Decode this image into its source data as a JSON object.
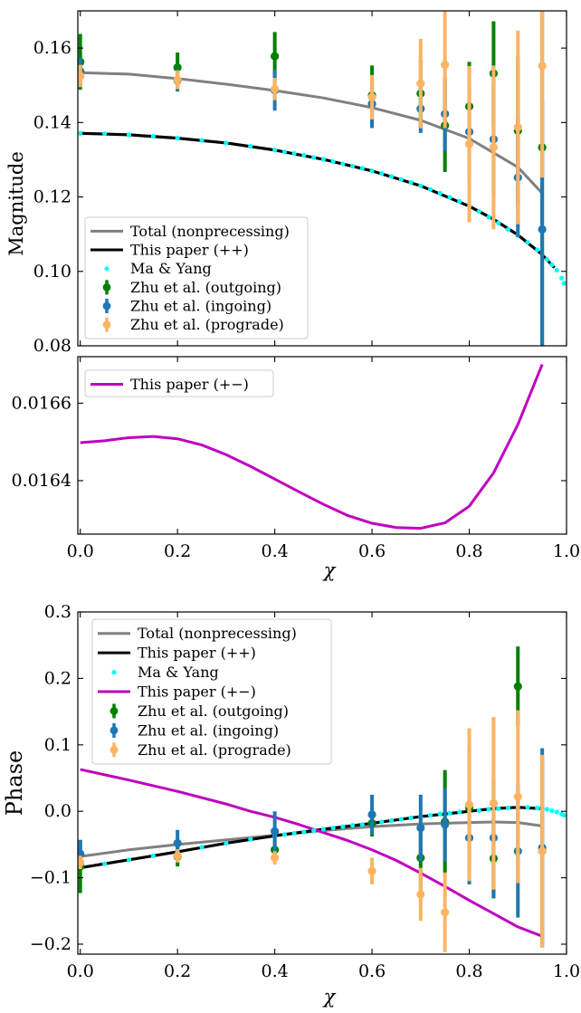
{
  "colors": {
    "total": "#808080",
    "this_pp": "#000000",
    "ma_yang": "#00ffff",
    "this_pm": "#bf00bf",
    "zhu_out": "#008000",
    "zhu_in": "#1f77b4",
    "zhu_pro": "#fdb462"
  },
  "chart_data": [
    {
      "type": "line",
      "title": "",
      "xlabel": "",
      "ylabel": "Magnitude",
      "xlim": [
        -0.005,
        1.0
      ],
      "ylim": [
        0.08,
        0.17
      ],
      "xticks": [
        0.0,
        0.2,
        0.4,
        0.6,
        0.8,
        1.0
      ],
      "xtick_labels": [
        "",
        "",
        "",
        "",
        "",
        ""
      ],
      "yticks": [
        0.08,
        0.1,
        0.12,
        0.14,
        0.16
      ],
      "ytick_labels": [
        "0.08",
        "0.10",
        "0.12",
        "0.14",
        "0.16"
      ],
      "legend_position": "lower-left",
      "legend": [
        {
          "label": "Total (nonprecessing)",
          "style": "line",
          "color_key": "total"
        },
        {
          "label": "This paper (++)",
          "style": "line",
          "color_key": "this_pp"
        },
        {
          "label": "Ma & Yang",
          "style": "dot",
          "color_key": "ma_yang"
        },
        {
          "label": "Zhu et al. (outgoing)",
          "style": "errorbar",
          "color_key": "zhu_out"
        },
        {
          "label": "Zhu et al. (ingoing)",
          "style": "errorbar",
          "color_key": "zhu_in"
        },
        {
          "label": "Zhu et al. (prograde)",
          "style": "errorbar",
          "color_key": "zhu_pro"
        }
      ],
      "series": [
        {
          "name": "Total (nonprecessing)",
          "kind": "line",
          "color_key": "total",
          "x": [
            0.0,
            0.1,
            0.2,
            0.3,
            0.4,
            0.5,
            0.6,
            0.7,
            0.8,
            0.9,
            0.95
          ],
          "y": [
            0.1534,
            0.153,
            0.1518,
            0.1503,
            0.1486,
            0.1466,
            0.144,
            0.1406,
            0.1357,
            0.128,
            0.121
          ]
        },
        {
          "name": "This paper (++)",
          "kind": "line",
          "color_key": "this_pp",
          "x": [
            0.0,
            0.1,
            0.2,
            0.3,
            0.4,
            0.5,
            0.6,
            0.7,
            0.8,
            0.85,
            0.9,
            0.95,
            0.975
          ],
          "y": [
            0.1371,
            0.1367,
            0.1358,
            0.1345,
            0.1326,
            0.1301,
            0.127,
            0.123,
            0.1175,
            0.114,
            0.1098,
            0.1045,
            0.101
          ]
        },
        {
          "name": "Ma & Yang",
          "kind": "scatter",
          "color_key": "ma_yang",
          "x": [
            0.0,
            0.05,
            0.1,
            0.15,
            0.2,
            0.25,
            0.3,
            0.35,
            0.4,
            0.42,
            0.44,
            0.46,
            0.48,
            0.5,
            0.52,
            0.54,
            0.56,
            0.58,
            0.6,
            0.62,
            0.64,
            0.66,
            0.68,
            0.7,
            0.72,
            0.74,
            0.76,
            0.78,
            0.8,
            0.82,
            0.84,
            0.86,
            0.88,
            0.9,
            0.92,
            0.94,
            0.95,
            0.96,
            0.97,
            0.98,
            0.99,
            0.995
          ],
          "y": [
            0.1371,
            0.137,
            0.1367,
            0.1363,
            0.1358,
            0.1352,
            0.1345,
            0.1336,
            0.1326,
            0.1321,
            0.1317,
            0.1312,
            0.1306,
            0.1301,
            0.1295,
            0.1289,
            0.1283,
            0.1277,
            0.127,
            0.1263,
            0.1255,
            0.1247,
            0.1239,
            0.123,
            0.122,
            0.121,
            0.1199,
            0.1188,
            0.1175,
            0.1161,
            0.1146,
            0.113,
            0.1113,
            0.1098,
            0.1078,
            0.1058,
            0.1045,
            0.1032,
            0.1018,
            0.1003,
            0.0982,
            0.0968
          ]
        },
        {
          "name": "Zhu et al. (outgoing)",
          "kind": "errorbar",
          "color_key": "zhu_out",
          "x": [
            0.0,
            0.2,
            0.4,
            0.6,
            0.7,
            0.75,
            0.8,
            0.85,
            0.9,
            0.95
          ],
          "y": [
            0.1563,
            0.1548,
            0.1578,
            0.1473,
            0.1478,
            0.1392,
            0.1443,
            0.1532,
            0.1378,
            0.1333
          ],
          "err": [
            0.0075,
            0.004,
            0.0065,
            0.008,
            0.009,
            0.0125,
            0.012,
            0.014,
            0.02,
            0.054
          ]
        },
        {
          "name": "Zhu et al. (ingoing)",
          "kind": "errorbar",
          "color_key": "zhu_in",
          "x": [
            0.0,
            0.2,
            0.4,
            0.6,
            0.7,
            0.75,
            0.8,
            0.85,
            0.9,
            0.95
          ],
          "y": [
            0.1538,
            0.1513,
            0.1487,
            0.145,
            0.1437,
            0.1423,
            0.1375,
            0.1355,
            0.1252,
            0.1113
          ],
          "err": [
            0.0035,
            0.003,
            0.0055,
            0.0065,
            0.0065,
            0.01,
            0.012,
            0.015,
            0.016,
            0.035
          ]
        },
        {
          "name": "Zhu et al. (prograde)",
          "kind": "errorbar",
          "color_key": "zhu_pro",
          "x": [
            0.0,
            0.2,
            0.4,
            0.6,
            0.7,
            0.75,
            0.8,
            0.85,
            0.9,
            0.95
          ],
          "y": [
            0.1525,
            0.1515,
            0.149,
            0.1468,
            0.1505,
            0.1555,
            0.1342,
            0.1333,
            0.1387,
            0.1552
          ],
          "err": [
            0.003,
            0.0025,
            0.003,
            0.006,
            0.012,
            0.017,
            0.021,
            0.022,
            0.026,
            0.03
          ]
        }
      ]
    },
    {
      "type": "line",
      "title": "",
      "xlabel": "χ",
      "ylabel": "",
      "xlim": [
        -0.005,
        1.0
      ],
      "ylim": [
        0.016262,
        0.01672
      ],
      "xticks": [
        0.0,
        0.2,
        0.4,
        0.6,
        0.8,
        1.0
      ],
      "xtick_labels": [
        "0.0",
        "0.2",
        "0.4",
        "0.6",
        "0.8",
        "1.0"
      ],
      "yticks": [
        0.0164,
        0.0166
      ],
      "ytick_labels": [
        "0.0164",
        "0.0166"
      ],
      "legend_position": "upper-left",
      "legend": [
        {
          "label": "This paper (+−)",
          "style": "line",
          "color_key": "this_pm"
        }
      ],
      "series": [
        {
          "name": "This paper (+−)",
          "kind": "line",
          "color_key": "this_pm",
          "x": [
            0.0,
            0.05,
            0.1,
            0.15,
            0.2,
            0.25,
            0.3,
            0.35,
            0.4,
            0.45,
            0.5,
            0.55,
            0.6,
            0.65,
            0.7,
            0.75,
            0.8,
            0.85,
            0.9,
            0.95
          ],
          "y": [
            0.016498,
            0.016503,
            0.016511,
            0.016514,
            0.016508,
            0.016492,
            0.016467,
            0.016437,
            0.016404,
            0.016371,
            0.016339,
            0.01631,
            0.01629,
            0.016279,
            0.016277,
            0.016291,
            0.016334,
            0.01642,
            0.016545,
            0.0167
          ]
        }
      ]
    },
    {
      "type": "line",
      "title": "",
      "xlabel": "χ",
      "ylabel": "Phase",
      "xlim": [
        -0.005,
        1.0
      ],
      "ylim": [
        -0.215,
        0.3
      ],
      "xticks": [
        0.0,
        0.2,
        0.4,
        0.6,
        0.8,
        1.0
      ],
      "xtick_labels": [
        "0.0",
        "0.2",
        "0.4",
        "0.6",
        "0.8",
        "1.0"
      ],
      "yticks": [
        -0.2,
        -0.1,
        0.0,
        0.1,
        0.2,
        0.3
      ],
      "ytick_labels": [
        "−0.2",
        "−0.1",
        "0.0",
        "0.1",
        "0.2",
        "0.3"
      ],
      "legend_position": "upper-left",
      "legend": [
        {
          "label": "Total (nonprecessing)",
          "style": "line",
          "color_key": "total"
        },
        {
          "label": "This paper (++)",
          "style": "line",
          "color_key": "this_pp"
        },
        {
          "label": "Ma & Yang",
          "style": "dot",
          "color_key": "ma_yang"
        },
        {
          "label": "This paper (+−)",
          "style": "line",
          "color_key": "this_pm"
        },
        {
          "label": "Zhu et al. (outgoing)",
          "style": "errorbar",
          "color_key": "zhu_out"
        },
        {
          "label": "Zhu et al. (ingoing)",
          "style": "errorbar",
          "color_key": "zhu_in"
        },
        {
          "label": "Zhu et al. (prograde)",
          "style": "errorbar",
          "color_key": "zhu_pro"
        }
      ],
      "series": [
        {
          "name": "Total (nonprecessing)",
          "kind": "line",
          "color_key": "total",
          "x": [
            0.0,
            0.1,
            0.2,
            0.3,
            0.4,
            0.5,
            0.6,
            0.7,
            0.8,
            0.85,
            0.9,
            0.95
          ],
          "y": [
            -0.068,
            -0.058,
            -0.05,
            -0.043,
            -0.036,
            -0.029,
            -0.023,
            -0.019,
            -0.017,
            -0.016,
            -0.017,
            -0.022
          ]
        },
        {
          "name": "This paper (++)",
          "kind": "line",
          "color_key": "this_pp",
          "x": [
            0.0,
            0.1,
            0.2,
            0.3,
            0.4,
            0.5,
            0.6,
            0.7,
            0.8,
            0.85,
            0.9,
            0.95
          ],
          "y": [
            -0.085,
            -0.073,
            -0.061,
            -0.048,
            -0.037,
            -0.027,
            -0.018,
            -0.008,
            0.0,
            0.004,
            0.006,
            0.004
          ]
        },
        {
          "name": "Ma & Yang",
          "kind": "scatter",
          "color_key": "ma_yang",
          "x": [
            0.0,
            0.05,
            0.1,
            0.15,
            0.2,
            0.25,
            0.3,
            0.35,
            0.4,
            0.42,
            0.44,
            0.46,
            0.48,
            0.5,
            0.52,
            0.54,
            0.56,
            0.58,
            0.6,
            0.62,
            0.64,
            0.66,
            0.68,
            0.7,
            0.72,
            0.74,
            0.76,
            0.78,
            0.8,
            0.82,
            0.84,
            0.86,
            0.88,
            0.9,
            0.92,
            0.94,
            0.95,
            0.96,
            0.97,
            0.98,
            0.99,
            0.995
          ],
          "y": [
            -0.085,
            -0.079,
            -0.073,
            -0.067,
            -0.061,
            -0.054,
            -0.048,
            -0.042,
            -0.037,
            -0.035,
            -0.033,
            -0.031,
            -0.029,
            -0.027,
            -0.025,
            -0.023,
            -0.021,
            -0.02,
            -0.018,
            -0.016,
            -0.014,
            -0.012,
            -0.01,
            -0.008,
            -0.006,
            -0.004,
            -0.003,
            -0.001,
            0.0,
            0.001,
            0.003,
            0.004,
            0.005,
            0.006,
            0.006,
            0.005,
            0.004,
            0.003,
            0.001,
            -0.001,
            -0.004,
            -0.006
          ]
        },
        {
          "name": "This paper (+−)",
          "kind": "line",
          "color_key": "this_pm",
          "x": [
            0.0,
            0.1,
            0.2,
            0.3,
            0.35,
            0.4,
            0.45,
            0.5,
            0.55,
            0.6,
            0.65,
            0.7,
            0.75,
            0.8,
            0.85,
            0.9,
            0.95
          ],
          "y": [
            0.063,
            0.047,
            0.03,
            0.011,
            0.0,
            -0.009,
            -0.02,
            -0.032,
            -0.044,
            -0.058,
            -0.074,
            -0.093,
            -0.113,
            -0.134,
            -0.154,
            -0.174,
            -0.188
          ]
        },
        {
          "name": "Zhu et al. (outgoing)",
          "kind": "errorbar",
          "color_key": "zhu_out",
          "x": [
            0.0,
            0.2,
            0.4,
            0.6,
            0.7,
            0.75,
            0.8,
            0.85,
            0.9,
            0.95
          ],
          "y": [
            -0.083,
            -0.068,
            -0.058,
            -0.018,
            -0.07,
            -0.016,
            0.005,
            -0.071,
            0.188,
            -0.06
          ],
          "err": [
            0.04,
            0.015,
            0.015,
            0.02,
            0.05,
            0.078,
            0.09,
            0.06,
            0.06,
            0.14
          ]
        },
        {
          "name": "Zhu et al. (ingoing)",
          "kind": "errorbar",
          "color_key": "zhu_in",
          "x": [
            0.0,
            0.2,
            0.4,
            0.6,
            0.7,
            0.75,
            0.8,
            0.85,
            0.9,
            0.95
          ],
          "y": [
            -0.064,
            -0.048,
            -0.03,
            -0.005,
            -0.025,
            -0.02,
            -0.04,
            -0.04,
            -0.06,
            -0.055
          ],
          "err": [
            0.02,
            0.02,
            0.03,
            0.03,
            0.05,
            0.055,
            0.07,
            0.09,
            0.1,
            0.15
          ]
        },
        {
          "name": "Zhu et al. (prograde)",
          "kind": "errorbar",
          "color_key": "zhu_pro",
          "x": [
            0.0,
            0.2,
            0.4,
            0.6,
            0.7,
            0.75,
            0.8,
            0.85,
            0.9,
            0.95
          ],
          "y": [
            -0.077,
            -0.067,
            -0.07,
            -0.09,
            -0.125,
            -0.152,
            0.01,
            0.012,
            0.022,
            -0.06
          ],
          "err": [
            0.01,
            0.01,
            0.01,
            0.02,
            0.04,
            0.06,
            0.115,
            0.13,
            0.13,
            0.145
          ]
        }
      ]
    }
  ]
}
